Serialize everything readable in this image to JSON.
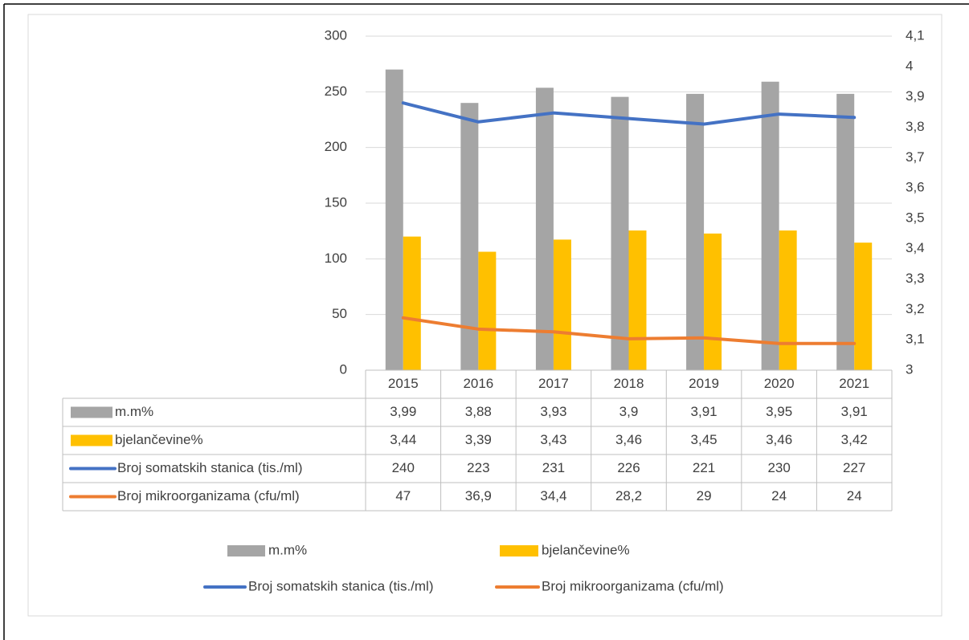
{
  "chart_data": {
    "type": "bar",
    "categories": [
      "2015",
      "2016",
      "2017",
      "2018",
      "2019",
      "2020",
      "2021"
    ],
    "series": [
      {
        "name": "m.m%",
        "type": "bar",
        "axis": "y2",
        "color": "#a5a5a5",
        "values": [
          3.99,
          3.88,
          3.93,
          3.9,
          3.91,
          3.95,
          3.91
        ],
        "value_labels": [
          "3,99",
          "3,88",
          "3,93",
          "3,9",
          "3,91",
          "3,95",
          "3,91"
        ]
      },
      {
        "name": "bjelančevine%",
        "type": "bar",
        "axis": "y2",
        "color": "#ffc000",
        "values": [
          3.44,
          3.39,
          3.43,
          3.46,
          3.45,
          3.46,
          3.42
        ],
        "value_labels": [
          "3,44",
          "3,39",
          "3,43",
          "3,46",
          "3,45",
          "3,46",
          "3,42"
        ]
      },
      {
        "name": "Broj somatskih stanica (tis./ml)",
        "type": "line",
        "color": "#4472c4",
        "values": [
          240,
          223,
          231,
          226,
          221,
          230,
          227
        ],
        "value_labels": [
          "240",
          "223",
          "231",
          "226",
          "221",
          "230",
          "227"
        ]
      },
      {
        "name": "Broj mikroorganizama (cfu/ml)",
        "type": "line",
        "color": "#ed7d31",
        "values": [
          47,
          36.9,
          34.4,
          28.2,
          29,
          24,
          24
        ],
        "value_labels": [
          "47",
          "36,9",
          "34,4",
          "28,2",
          "29",
          "24",
          "24"
        ]
      }
    ],
    "ylim": [
      0,
      300
    ],
    "yticks": [
      0,
      50,
      100,
      150,
      200,
      250,
      300
    ],
    "y2lim": [
      3,
      4.1
    ],
    "y2ticks": [
      3,
      {
        "value": 3.1,
        "label": "3,1"
      },
      {
        "value": 3.2,
        "label": "3,2"
      },
      {
        "value": 3.3,
        "label": "3,3"
      },
      {
        "value": 3.4,
        "label": "3,4"
      },
      {
        "value": 3.5,
        "label": "3,5"
      },
      {
        "value": 3.6,
        "label": "3,6"
      },
      {
        "value": 3.7,
        "label": "3,7"
      },
      {
        "value": 3.8,
        "label": "3,8"
      },
      {
        "value": 3.9,
        "label": "3,9"
      },
      4,
      {
        "value": 4.1,
        "label": "4,1"
      }
    ],
    "grid": true,
    "data_table": true,
    "legend": "bottom"
  }
}
